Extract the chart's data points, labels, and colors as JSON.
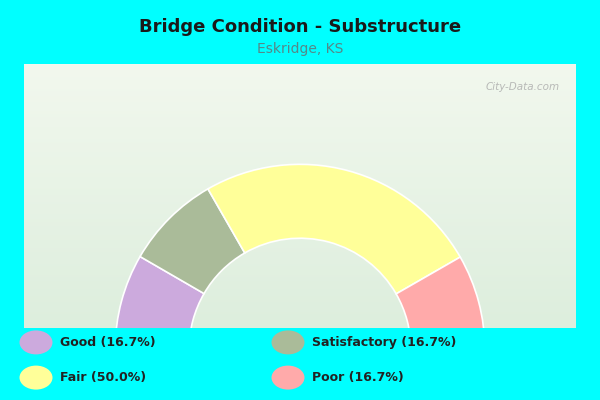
{
  "title": "Bridge Condition - Substructure",
  "subtitle": "Eskridge, KS",
  "subtitle_color": "#558888",
  "title_color": "#1a1a1a",
  "background_color": "#00FFFF",
  "chart_bg_start": "#e8f0e0",
  "chart_bg_end": "#f0f8f0",
  "segments": [
    {
      "label": "Good",
      "pct": 16.7,
      "color": "#ccaadd"
    },
    {
      "label": "Satisfactory",
      "pct": 16.7,
      "color": "#aabb99"
    },
    {
      "label": "Fair",
      "pct": 50.0,
      "color": "#ffff99"
    },
    {
      "label": "Poor",
      "pct": 16.7,
      "color": "#ffaaaa"
    }
  ],
  "legend": [
    {
      "label": "Good (16.7%)",
      "color": "#ccaadd"
    },
    {
      "label": "Fair (50.0%)",
      "color": "#ffff99"
    },
    {
      "label": "Satisfactory (16.7%)",
      "color": "#aabb99"
    },
    {
      "label": "Poor (16.7%)",
      "color": "#ffaaaa"
    }
  ],
  "watermark": "⚙ City-Data.com"
}
